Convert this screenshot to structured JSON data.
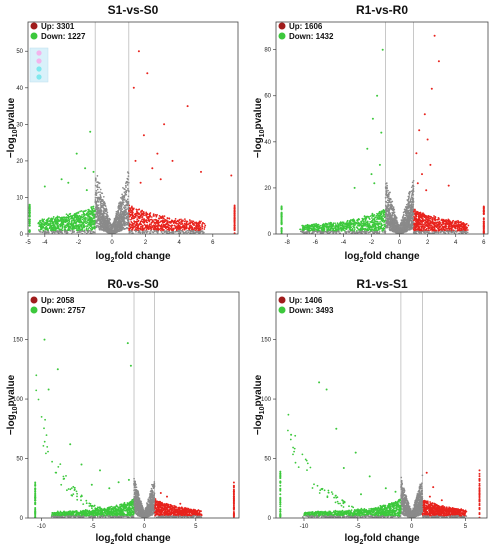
{
  "colors": {
    "up": "#e8231d",
    "up_legend": "#a01c1c",
    "down": "#3cc83c",
    "nonsig": "#8a8a8a",
    "threshold_line": "#bbbbbb",
    "axis": "#444444"
  },
  "chart_data": [
    {
      "type": "scatter",
      "title": "S1-vs-S0",
      "xlabel": "log2fold change",
      "ylabel": "-log10pvalue",
      "xlim": [
        -5,
        7.5
      ],
      "ylim": [
        0,
        58
      ],
      "xticks": [
        -5,
        -4,
        -2,
        0,
        2,
        4,
        6
      ],
      "yticks": [
        0,
        10,
        20,
        30,
        40,
        50
      ],
      "threshold_x": [
        -1,
        1
      ],
      "legend": [
        {
          "label": "Up: 3301",
          "key": "up"
        },
        {
          "label": "Down: 1227",
          "key": "down"
        }
      ],
      "cloud_scale": 8,
      "left_cap_x": -4.9,
      "right_cap_x": 7.3,
      "cap_height": 8,
      "left_spread": 4.3,
      "right_spread": 5.5,
      "outliers": [
        {
          "x": 1.6,
          "y": 50,
          "c": "up"
        },
        {
          "x": 2.1,
          "y": 44,
          "c": "up"
        },
        {
          "x": 1.3,
          "y": 40,
          "c": "up"
        },
        {
          "x": 4.5,
          "y": 35,
          "c": "up"
        },
        {
          "x": 3.1,
          "y": 30,
          "c": "up"
        },
        {
          "x": 1.9,
          "y": 27,
          "c": "up"
        },
        {
          "x": 2.7,
          "y": 22,
          "c": "up"
        },
        {
          "x": 3.6,
          "y": 20,
          "c": "up"
        },
        {
          "x": 5.3,
          "y": 17,
          "c": "up"
        },
        {
          "x": 7.1,
          "y": 16,
          "c": "up"
        },
        {
          "x": 1.4,
          "y": 20,
          "c": "up"
        },
        {
          "x": 2.4,
          "y": 18,
          "c": "up"
        },
        {
          "x": 1.7,
          "y": 14,
          "c": "up"
        },
        {
          "x": 2.9,
          "y": 15,
          "c": "up"
        },
        {
          "x": -1.3,
          "y": 28,
          "c": "down"
        },
        {
          "x": -2.1,
          "y": 22,
          "c": "down"
        },
        {
          "x": -1.6,
          "y": 18,
          "c": "down"
        },
        {
          "x": -3.0,
          "y": 15,
          "c": "down"
        },
        {
          "x": -1.1,
          "y": 17,
          "c": "down"
        },
        {
          "x": -2.6,
          "y": 14,
          "c": "down"
        },
        {
          "x": -4.0,
          "y": 13,
          "c": "down"
        },
        {
          "x": -1.5,
          "y": 12,
          "c": "down"
        }
      ]
    },
    {
      "type": "scatter",
      "title": "R1-vs-R0",
      "xlabel": "log2fold change",
      "ylabel": "-log10pvalue",
      "xlim": [
        -8.8,
        6.3
      ],
      "ylim": [
        0,
        92
      ],
      "xticks": [
        -8,
        -6,
        -4,
        -2,
        0,
        2,
        4,
        6
      ],
      "yticks": [
        0,
        20,
        40,
        60,
        80
      ],
      "threshold_x": [
        -1,
        1
      ],
      "legend": [
        {
          "label": "Up: 1606",
          "key": "up"
        },
        {
          "label": "Down: 1432",
          "key": "down"
        }
      ],
      "cloud_scale": 11,
      "left_cap_x": -8.4,
      "right_cap_x": 6.0,
      "cap_height": 12,
      "left_spread": 7.0,
      "right_spread": 4.8,
      "outliers": [
        {
          "x": 2.5,
          "y": 86,
          "c": "up"
        },
        {
          "x": 2.8,
          "y": 75,
          "c": "up"
        },
        {
          "x": 2.3,
          "y": 63,
          "c": "up"
        },
        {
          "x": 1.8,
          "y": 52,
          "c": "up"
        },
        {
          "x": 1.4,
          "y": 45,
          "c": "up"
        },
        {
          "x": 2.0,
          "y": 41,
          "c": "up"
        },
        {
          "x": 1.2,
          "y": 35,
          "c": "up"
        },
        {
          "x": 2.2,
          "y": 30,
          "c": "up"
        },
        {
          "x": 1.6,
          "y": 26,
          "c": "up"
        },
        {
          "x": 1.3,
          "y": 22,
          "c": "up"
        },
        {
          "x": 3.5,
          "y": 21,
          "c": "up"
        },
        {
          "x": 1.9,
          "y": 19,
          "c": "up"
        },
        {
          "x": -1.6,
          "y": 60,
          "c": "down"
        },
        {
          "x": -1.9,
          "y": 50,
          "c": "down"
        },
        {
          "x": -1.3,
          "y": 44,
          "c": "down"
        },
        {
          "x": -2.3,
          "y": 37,
          "c": "down"
        },
        {
          "x": -1.4,
          "y": 30,
          "c": "down"
        },
        {
          "x": -2.0,
          "y": 26,
          "c": "down"
        },
        {
          "x": -1.8,
          "y": 22,
          "c": "down"
        },
        {
          "x": -3.2,
          "y": 20,
          "c": "down"
        },
        {
          "x": -1.2,
          "y": 80,
          "c": "down"
        }
      ]
    },
    {
      "type": "scatter",
      "title": "R0-vs-S0",
      "xlabel": "log2fold change",
      "ylabel": "-log10pvalue",
      "xlim": [
        -11.3,
        9.2
      ],
      "ylim": [
        0,
        190
      ],
      "xticks": [
        -10,
        -5,
        0,
        5
      ],
      "yticks": [
        0,
        50,
        100,
        150
      ],
      "threshold_x": [
        -1,
        1
      ],
      "legend": [
        {
          "label": "Up: 2058",
          "key": "up"
        },
        {
          "label": "Down: 2757",
          "key": "down"
        }
      ],
      "cloud_scale": 16,
      "left_cap_x": -10.6,
      "right_cap_x": 8.7,
      "cap_height": 30,
      "left_spread": 9.0,
      "right_spread": 5.5,
      "decay_curve": {
        "start_x": -10.5,
        "end_x": -1.1,
        "start_y": 95,
        "k": 0.42
      },
      "outliers": [
        {
          "x": -9.7,
          "y": 150,
          "c": "down"
        },
        {
          "x": -8.4,
          "y": 125,
          "c": "down"
        },
        {
          "x": -1.6,
          "y": 147,
          "c": "down"
        },
        {
          "x": -1.3,
          "y": 128,
          "c": "down"
        },
        {
          "x": -9.3,
          "y": 108,
          "c": "down"
        },
        {
          "x": -7.2,
          "y": 62,
          "c": "down"
        },
        {
          "x": -6.1,
          "y": 45,
          "c": "down"
        },
        {
          "x": -4.3,
          "y": 40,
          "c": "down"
        },
        {
          "x": -2.5,
          "y": 30,
          "c": "down"
        },
        {
          "x": -1.5,
          "y": 32,
          "c": "down"
        },
        {
          "x": -3.4,
          "y": 25,
          "c": "down"
        },
        {
          "x": -5.1,
          "y": 28,
          "c": "down"
        },
        {
          "x": 2.2,
          "y": 18,
          "c": "up"
        },
        {
          "x": 3.5,
          "y": 12,
          "c": "up"
        },
        {
          "x": 1.6,
          "y": 21,
          "c": "up"
        }
      ]
    },
    {
      "type": "scatter",
      "title": "R1-vs-S1",
      "xlabel": "log2fold change",
      "ylabel": "-log10pvalue",
      "xlim": [
        -12.6,
        7.0
      ],
      "ylim": [
        0,
        190
      ],
      "xticks": [
        -10,
        -5,
        0,
        5
      ],
      "yticks": [
        0,
        50,
        100,
        150
      ],
      "threshold_x": [
        -1,
        1
      ],
      "legend": [
        {
          "label": "Up: 1406",
          "key": "up"
        },
        {
          "label": "Down: 3493",
          "key": "down"
        }
      ],
      "cloud_scale": 16,
      "left_cap_x": -12.2,
      "right_cap_x": 6.3,
      "cap_height": 40,
      "left_spread": 10.0,
      "right_spread": 5.0,
      "decay_curve": {
        "start_x": -11.5,
        "end_x": -1.1,
        "start_y": 70,
        "k": 0.35
      },
      "outliers": [
        {
          "x": -8.6,
          "y": 114,
          "c": "down"
        },
        {
          "x": -7.9,
          "y": 108,
          "c": "down"
        },
        {
          "x": -11.2,
          "y": 70,
          "c": "down"
        },
        {
          "x": -7.0,
          "y": 75,
          "c": "down"
        },
        {
          "x": -5.2,
          "y": 55,
          "c": "down"
        },
        {
          "x": -6.3,
          "y": 42,
          "c": "down"
        },
        {
          "x": -3.9,
          "y": 35,
          "c": "down"
        },
        {
          "x": -2.4,
          "y": 25,
          "c": "down"
        },
        {
          "x": -1.5,
          "y": 22,
          "c": "down"
        },
        {
          "x": -4.7,
          "y": 20,
          "c": "down"
        },
        {
          "x": 1.4,
          "y": 38,
          "c": "up"
        },
        {
          "x": 2.0,
          "y": 26,
          "c": "up"
        },
        {
          "x": 2.8,
          "y": 15,
          "c": "up"
        },
        {
          "x": 1.7,
          "y": 18,
          "c": "up"
        }
      ]
    }
  ]
}
